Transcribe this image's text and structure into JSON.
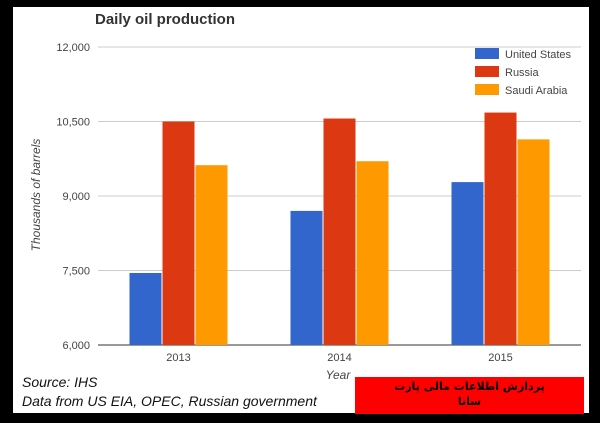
{
  "chart_data": {
    "type": "bar",
    "title": "Daily oil production",
    "xlabel": "Year",
    "ylabel": "Thousands of barrels",
    "categories": [
      "2013",
      "2014",
      "2015"
    ],
    "series": [
      {
        "name": "United States",
        "color": "#3366cc",
        "values": [
          7450,
          8700,
          9280
        ]
      },
      {
        "name": "Russia",
        "color": "#dc3912",
        "values": [
          10500,
          10560,
          10680
        ]
      },
      {
        "name": "Saudi Arabia",
        "color": "#ff9900",
        "values": [
          9620,
          9700,
          10140
        ]
      }
    ],
    "ylim": [
      6000,
      12000
    ],
    "yticks": [
      "6,000",
      "7,500",
      "9,000",
      "10,500",
      "12,000"
    ],
    "ytick_values": [
      6000,
      7500,
      9000,
      10500,
      12000
    ],
    "grid": true,
    "legend": "top-right"
  },
  "source": {
    "line1": "Source: IHS",
    "line2": "Data from US EIA, OPEC, Russian government"
  },
  "logo": {
    "line1": "پردازش اطلاعات مالی پارت",
    "line2": "سانا"
  }
}
